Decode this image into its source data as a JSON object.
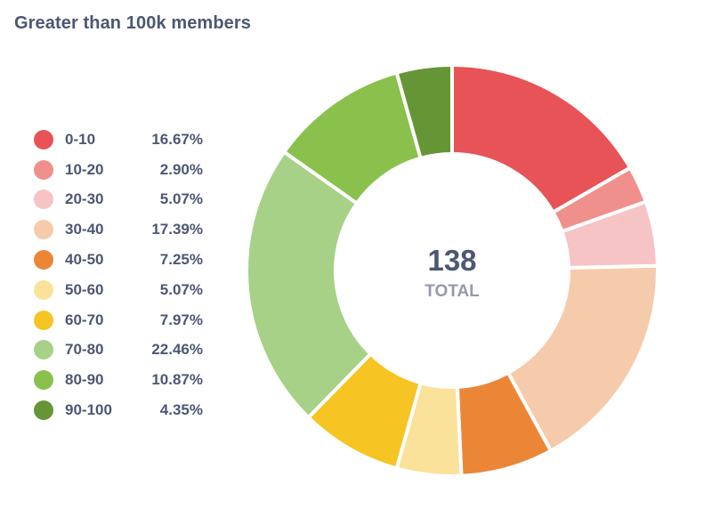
{
  "card": {
    "title": "Greater than 100k members"
  },
  "center": {
    "value": "138",
    "label": "TOTAL"
  },
  "chart_data": {
    "type": "pie",
    "donut": true,
    "legend_position": "left",
    "total": 138,
    "slices": [
      {
        "label": "0-10",
        "percent_label": "16.67%",
        "percent": 16.67,
        "color": "#e75356"
      },
      {
        "label": "10-20",
        "percent_label": "2.90%",
        "percent": 2.9,
        "color": "#f0908d"
      },
      {
        "label": "20-30",
        "percent_label": "5.07%",
        "percent": 5.07,
        "color": "#f6c4c4"
      },
      {
        "label": "30-40",
        "percent_label": "17.39%",
        "percent": 17.39,
        "color": "#f6cbab"
      },
      {
        "label": "40-50",
        "percent_label": "7.25%",
        "percent": 7.25,
        "color": "#ec8637"
      },
      {
        "label": "50-60",
        "percent_label": "5.07%",
        "percent": 5.07,
        "color": "#fae29b"
      },
      {
        "label": "60-70",
        "percent_label": "7.97%",
        "percent": 7.97,
        "color": "#f6c423"
      },
      {
        "label": "70-80",
        "percent_label": "22.46%",
        "percent": 22.46,
        "color": "#a7d187"
      },
      {
        "label": "80-90",
        "percent_label": "10.87%",
        "percent": 10.87,
        "color": "#89c14c"
      },
      {
        "label": "90-100",
        "percent_label": "4.35%",
        "percent": 4.35,
        "color": "#669535"
      }
    ]
  }
}
